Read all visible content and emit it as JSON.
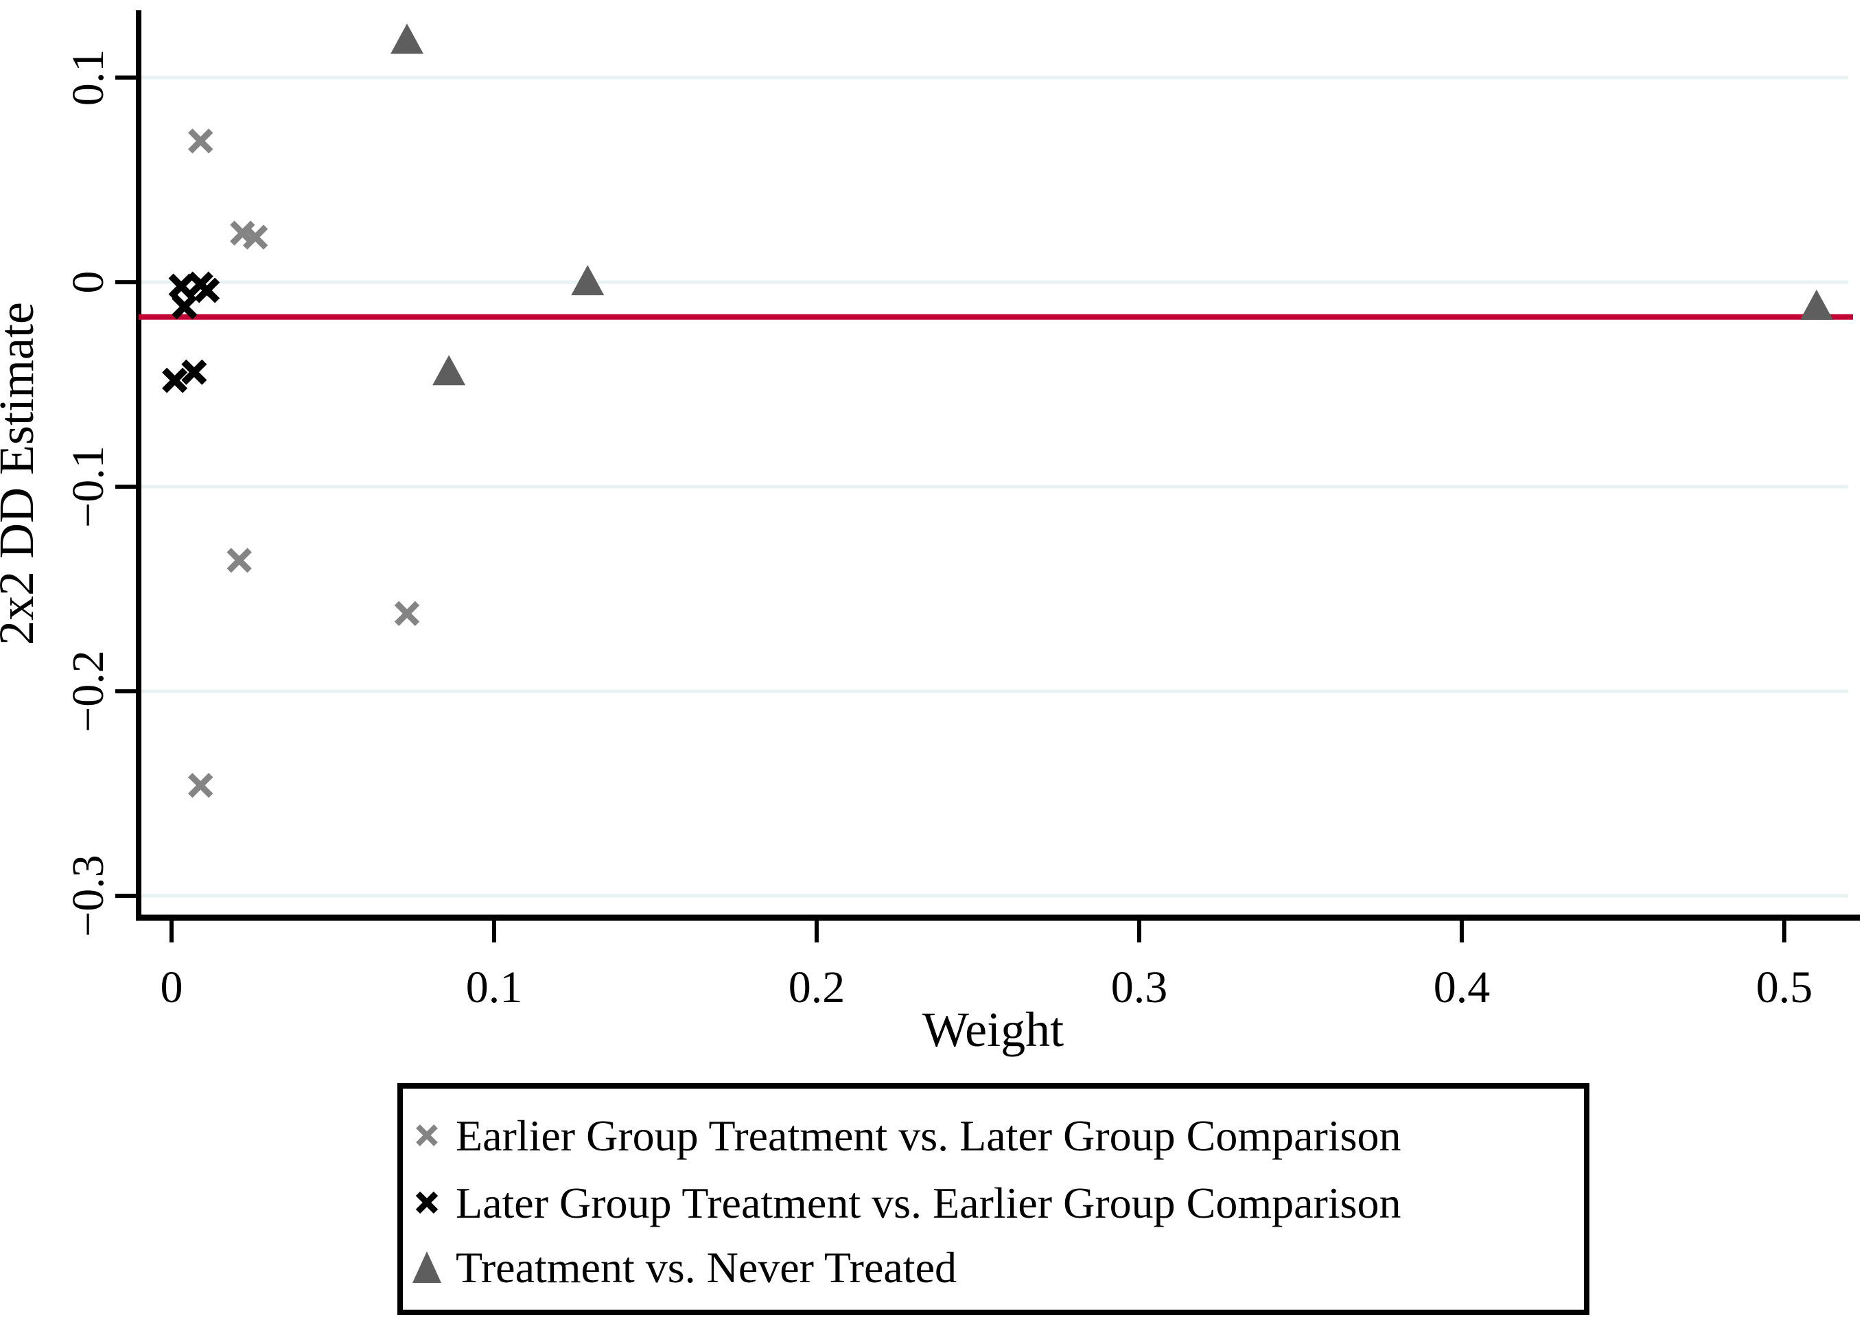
{
  "chart_data": {
    "type": "scatter",
    "xlabel": "Weight",
    "ylabel": "2x2 DD Estimate",
    "xlim": [
      -0.0102,
      0.5198
    ],
    "ylim": [
      -0.3107,
      0.1329
    ],
    "x_ticks": [
      {
        "value": 0,
        "label": "0"
      },
      {
        "value": 0.1,
        "label": "0.1"
      },
      {
        "value": 0.2,
        "label": "0.2"
      },
      {
        "value": 0.3,
        "label": "0.3"
      },
      {
        "value": 0.4,
        "label": "0.4"
      },
      {
        "value": 0.5,
        "label": "0.5"
      }
    ],
    "y_ticks": [
      {
        "value": 0.1,
        "label": "0.1"
      },
      {
        "value": 0,
        "label": "0"
      },
      {
        "value": -0.1,
        "label": "−0.1"
      },
      {
        "value": -0.2,
        "label": "−0.2"
      },
      {
        "value": -0.3,
        "label": "−0.3"
      }
    ],
    "grid": "horizontal",
    "grid_color": "#e9f2f3",
    "axis_color": "#000000",
    "background_color": "#ffffff",
    "reference_line": {
      "y": -0.017,
      "color": "#c10534"
    },
    "series": [
      {
        "name": "Earlier Group Treatment vs. Later Group Comparison",
        "marker": "x",
        "color": "#848484",
        "points": [
          {
            "x": 0.009,
            "y": 0.069
          },
          {
            "x": 0.022,
            "y": 0.024
          },
          {
            "x": 0.026,
            "y": 0.022
          },
          {
            "x": 0.021,
            "y": -0.136
          },
          {
            "x": 0.073,
            "y": -0.162
          },
          {
            "x": 0.009,
            "y": -0.246
          }
        ]
      },
      {
        "name": "Later Group Treatment vs. Earlier Group Comparison",
        "marker": "x",
        "color": "#000000",
        "points": [
          {
            "x": 0.003,
            "y": -0.002
          },
          {
            "x": 0.004,
            "y": -0.012
          },
          {
            "x": 0.009,
            "y": -0.001
          },
          {
            "x": 0.011,
            "y": -0.004
          },
          {
            "x": 0.001,
            "y": -0.048
          },
          {
            "x": 0.007,
            "y": -0.044
          }
        ]
      },
      {
        "name": "Treatment vs. Never Treated",
        "marker": "triangle",
        "color": "#5e5e5e",
        "points": [
          {
            "x": 0.073,
            "y": 0.119
          },
          {
            "x": 0.086,
            "y": -0.043
          },
          {
            "x": 0.129,
            "y": 0.001
          },
          {
            "x": 0.51,
            "y": -0.011
          }
        ]
      }
    ],
    "legend": {
      "position": "bottom-center",
      "border_color": "#000000"
    }
  }
}
